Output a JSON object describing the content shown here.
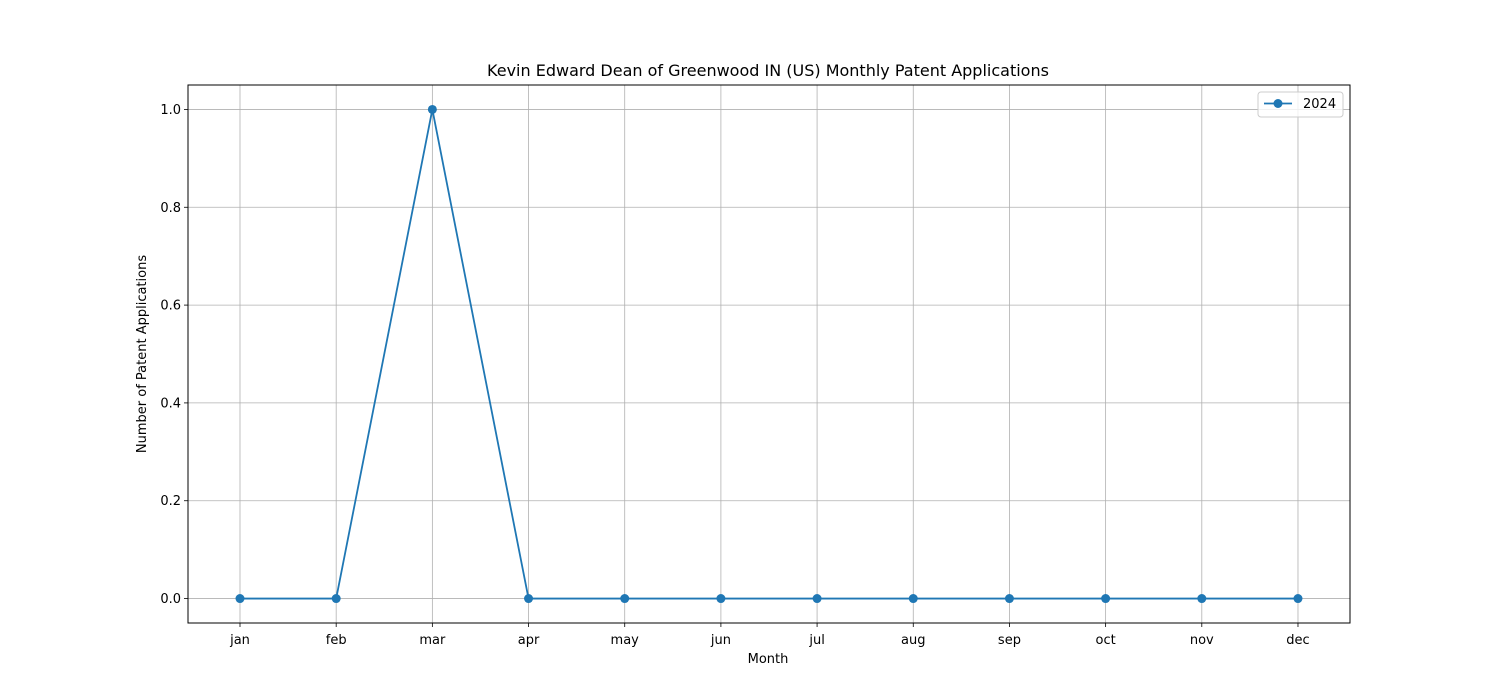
{
  "chart_data": {
    "type": "line",
    "title": "Kevin Edward Dean of Greenwood IN (US) Monthly Patent Applications",
    "xlabel": "Month",
    "ylabel": "Number of Patent Applications",
    "categories": [
      "jan",
      "feb",
      "mar",
      "apr",
      "may",
      "jun",
      "jul",
      "aug",
      "sep",
      "oct",
      "nov",
      "dec"
    ],
    "series": [
      {
        "name": "2024",
        "color": "#1f77b4",
        "values": [
          0,
          0,
          1,
          0,
          0,
          0,
          0,
          0,
          0,
          0,
          0,
          0
        ]
      }
    ],
    "ylim": [
      -0.05,
      1.05
    ],
    "yticks": [
      "0.0",
      "0.2",
      "0.4",
      "0.6",
      "0.8",
      "1.0"
    ],
    "grid": true,
    "legend_position": "top-right"
  }
}
